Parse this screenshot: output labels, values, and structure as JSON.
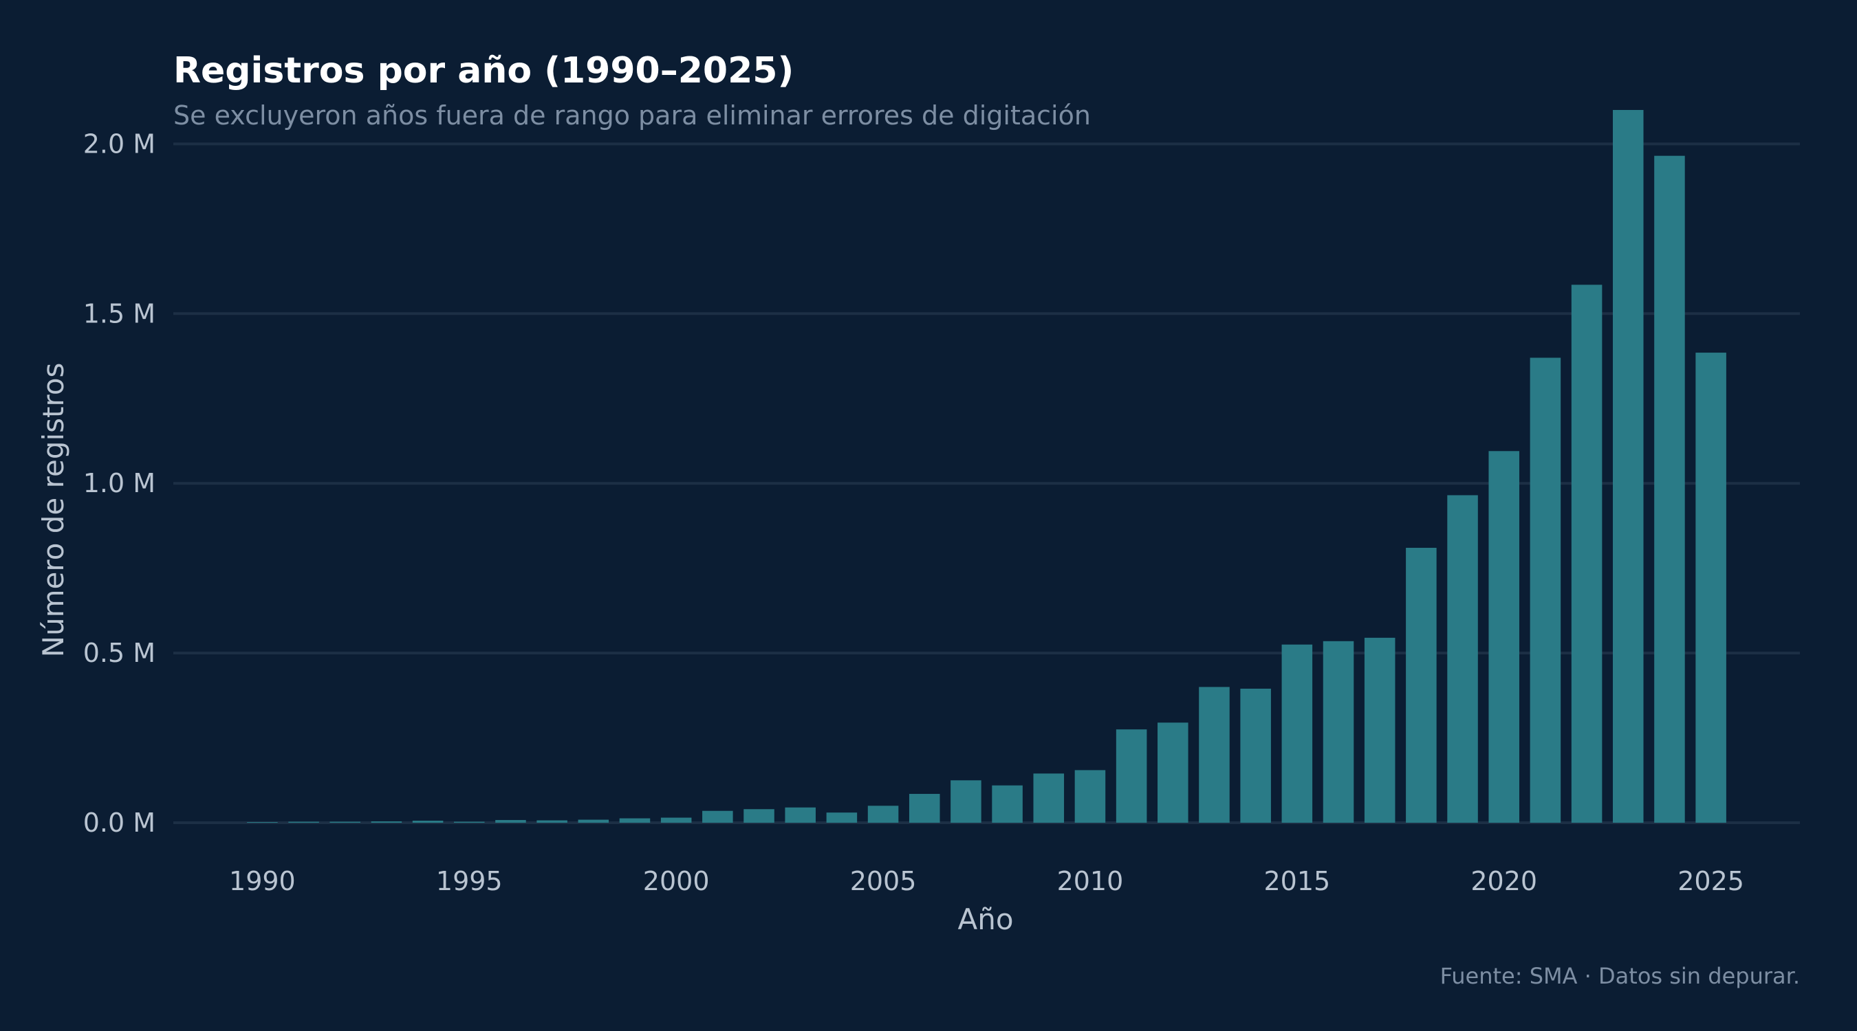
{
  "chart_data": {
    "type": "bar",
    "title": "Registros por año (1990–2025)",
    "subtitle": "Se excluyeron años fuera de rango para eliminar errores de digitación",
    "xlabel": "Año",
    "ylabel": "Número de registros",
    "source": "Fuente: SMA · Datos sin depurar.",
    "x_ticks": [
      "1990",
      "1995",
      "2000",
      "2005",
      "2010",
      "2015",
      "2020",
      "2025"
    ],
    "y_ticks": [
      {
        "value": 0,
        "label": "0.0 M"
      },
      {
        "value": 500000,
        "label": "0.5 M"
      },
      {
        "value": 1000000,
        "label": "1.0 M"
      },
      {
        "value": 1500000,
        "label": "1.5 M"
      },
      {
        "value": 2000000,
        "label": "2.0 M"
      }
    ],
    "ylim": [
      0,
      2100000
    ],
    "xlim": [
      1987.85,
      2027.15
    ],
    "grid": true,
    "bar_color": "#2a7b87",
    "categories": [
      1990,
      1991,
      1992,
      1993,
      1994,
      1995,
      1996,
      1997,
      1998,
      1999,
      2000,
      2001,
      2002,
      2003,
      2004,
      2005,
      2006,
      2007,
      2008,
      2009,
      2010,
      2011,
      2012,
      2013,
      2014,
      2015,
      2016,
      2017,
      2018,
      2019,
      2020,
      2021,
      2022,
      2023,
      2024,
      2025
    ],
    "values": [
      2000,
      3000,
      3000,
      4000,
      6000,
      3000,
      8000,
      7000,
      9000,
      13000,
      15000,
      35000,
      40000,
      45000,
      30000,
      50000,
      85000,
      125000,
      110000,
      145000,
      155000,
      275000,
      295000,
      400000,
      395000,
      525000,
      535000,
      545000,
      810000,
      965000,
      1095000,
      1370000,
      1585000,
      2100000,
      1965000,
      1385000
    ]
  }
}
